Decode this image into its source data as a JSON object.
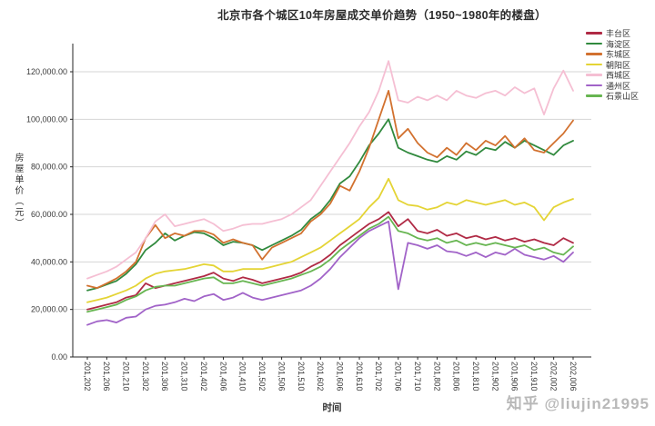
{
  "title": "北京市各个城区10年房屋成交单价趋势（1950~1980年的楼盘）",
  "watermark": "知乎 @liujin21995",
  "chart_data": {
    "type": "line",
    "title": "北京市各个城区10年房屋成交单价趋势（1950~1980年的楼盘）",
    "xlabel": "时间",
    "ylabel": "房屋单价（元）",
    "ylim": [
      0,
      130000
    ],
    "ytick_interval": 20000,
    "ytick_labels": [
      "0.00",
      "20,000.00",
      "40,000.00",
      "60,000.00",
      "80,000.00",
      "100,000.00",
      "120,000.00"
    ],
    "grid": "horizontal",
    "legend_position": "top-right",
    "xtick_labels": [
      "201,202",
      "201,206",
      "201,210",
      "201,302",
      "201,306",
      "201,310",
      "201,402",
      "201,406",
      "201,410",
      "201,502",
      "201,506",
      "201,510",
      "201,602",
      "201,606",
      "201,610",
      "201,702",
      "201,706",
      "201,710",
      "201,802",
      "201,806",
      "201,810",
      "201,902",
      "201,906",
      "201,910",
      "202,002",
      "202,006"
    ],
    "x_months": [
      "2012-02",
      "2012-04",
      "2012-06",
      "2012-08",
      "2012-10",
      "2012-12",
      "2013-02",
      "2013-04",
      "2013-06",
      "2013-08",
      "2013-10",
      "2013-12",
      "2014-02",
      "2014-04",
      "2014-06",
      "2014-08",
      "2014-10",
      "2014-12",
      "2015-02",
      "2015-04",
      "2015-06",
      "2015-08",
      "2015-10",
      "2015-12",
      "2016-02",
      "2016-04",
      "2016-06",
      "2016-08",
      "2016-10",
      "2016-12",
      "2017-02",
      "2017-04",
      "2017-06",
      "2017-08",
      "2017-10",
      "2017-12",
      "2018-02",
      "2018-04",
      "2018-06",
      "2018-08",
      "2018-10",
      "2018-12",
      "2019-02",
      "2019-04",
      "2019-06",
      "2019-08",
      "2019-10",
      "2019-12",
      "2020-02",
      "2020-04",
      "2020-06"
    ],
    "series": [
      {
        "name": "丰台区",
        "color": "#b02a45",
        "values": [
          20000,
          21000,
          22000,
          23000,
          25000,
          26000,
          31000,
          29000,
          30000,
          31000,
          32000,
          33000,
          34000,
          35500,
          33000,
          32000,
          33500,
          32500,
          31000,
          32000,
          33000,
          34000,
          35500,
          38000,
          40000,
          43000,
          47000,
          50000,
          53000,
          56000,
          58000,
          61000,
          55000,
          58000,
          53000,
          52000,
          53500,
          51000,
          52000,
          50000,
          51000,
          49500,
          50500,
          49000,
          50000,
          48500,
          49500,
          48000,
          47000,
          50000,
          48000
        ]
      },
      {
        "name": "海淀区",
        "color": "#318a3e",
        "values": [
          28000,
          29000,
          30500,
          32000,
          35000,
          39000,
          45000,
          48000,
          52000,
          49000,
          51000,
          52500,
          52000,
          50000,
          47000,
          48500,
          48000,
          47000,
          45000,
          47000,
          49000,
          51000,
          53500,
          58000,
          61000,
          66000,
          73000,
          76000,
          82000,
          89000,
          94000,
          100000,
          88000,
          86000,
          84500,
          83000,
          82000,
          84500,
          83000,
          86500,
          85000,
          88000,
          87000,
          90500,
          88000,
          91000,
          89000,
          87000,
          85000,
          89000,
          91000
        ]
      },
      {
        "name": "东城区",
        "color": "#d2712f",
        "values": [
          30000,
          29000,
          31000,
          33000,
          36000,
          40000,
          50000,
          55500,
          50000,
          52000,
          51000,
          53000,
          53000,
          51500,
          48000,
          49500,
          48000,
          47000,
          41000,
          46000,
          48000,
          50000,
          52000,
          57000,
          60000,
          64500,
          72000,
          70000,
          78000,
          88000,
          100000,
          112000,
          92000,
          96000,
          90000,
          86000,
          84000,
          88000,
          85000,
          90000,
          87000,
          91000,
          89000,
          93000,
          88000,
          92000,
          87000,
          86000,
          90000,
          94000,
          99500
        ]
      },
      {
        "name": "朝阳区",
        "color": "#e4d435",
        "values": [
          23000,
          24000,
          25000,
          26500,
          28000,
          30000,
          33000,
          35000,
          36000,
          36500,
          37000,
          38000,
          39000,
          38500,
          36000,
          36000,
          37000,
          37000,
          37000,
          38000,
          39000,
          40000,
          42000,
          44000,
          46000,
          49000,
          52000,
          55000,
          58000,
          63000,
          67000,
          75000,
          66000,
          64000,
          63500,
          62000,
          63000,
          65000,
          64000,
          66000,
          65000,
          64000,
          65000,
          66000,
          64000,
          65000,
          63000,
          57500,
          63000,
          65000,
          66500
        ]
      },
      {
        "name": "西城区",
        "color": "#f5bfd3",
        "values": [
          33000,
          34500,
          36000,
          38000,
          41000,
          44000,
          50000,
          57000,
          60000,
          55000,
          56000,
          57000,
          58000,
          56000,
          53000,
          54000,
          55500,
          56000,
          56000,
          57000,
          58000,
          60000,
          63000,
          66000,
          72000,
          78000,
          84000,
          90000,
          97000,
          103000,
          112000,
          124500,
          108000,
          107000,
          109500,
          108000,
          110000,
          108000,
          112000,
          110000,
          109000,
          111000,
          112000,
          110000,
          113500,
          111000,
          113000,
          102000,
          113000,
          120500,
          112000
        ]
      },
      {
        "name": "通州区",
        "color": "#a163c8",
        "values": [
          13500,
          15000,
          15500,
          14500,
          16500,
          17000,
          20000,
          21500,
          22000,
          23000,
          24500,
          23500,
          25500,
          26500,
          24000,
          25000,
          27000,
          25000,
          24000,
          25000,
          26000,
          27000,
          28000,
          30000,
          33000,
          37000,
          42000,
          46000,
          50000,
          53000,
          55000,
          57000,
          28500,
          48000,
          47000,
          45500,
          47000,
          44500,
          44000,
          42500,
          44000,
          42000,
          44000,
          43000,
          45500,
          43000,
          42000,
          41000,
          42500,
          40000,
          44000
        ]
      },
      {
        "name": "石景山区",
        "color": "#67b551",
        "values": [
          19000,
          20000,
          21000,
          22000,
          24000,
          25500,
          28000,
          29500,
          30000,
          30000,
          31000,
          32000,
          33000,
          33500,
          31000,
          31000,
          32000,
          31000,
          30000,
          31000,
          32000,
          33000,
          34500,
          36000,
          38000,
          41000,
          45000,
          48000,
          51000,
          54000,
          56000,
          59000,
          53000,
          52000,
          50000,
          49000,
          50000,
          48000,
          49000,
          47000,
          48000,
          47000,
          48000,
          47000,
          46000,
          47000,
          45000,
          46000,
          44000,
          43000,
          46500
        ]
      }
    ]
  }
}
